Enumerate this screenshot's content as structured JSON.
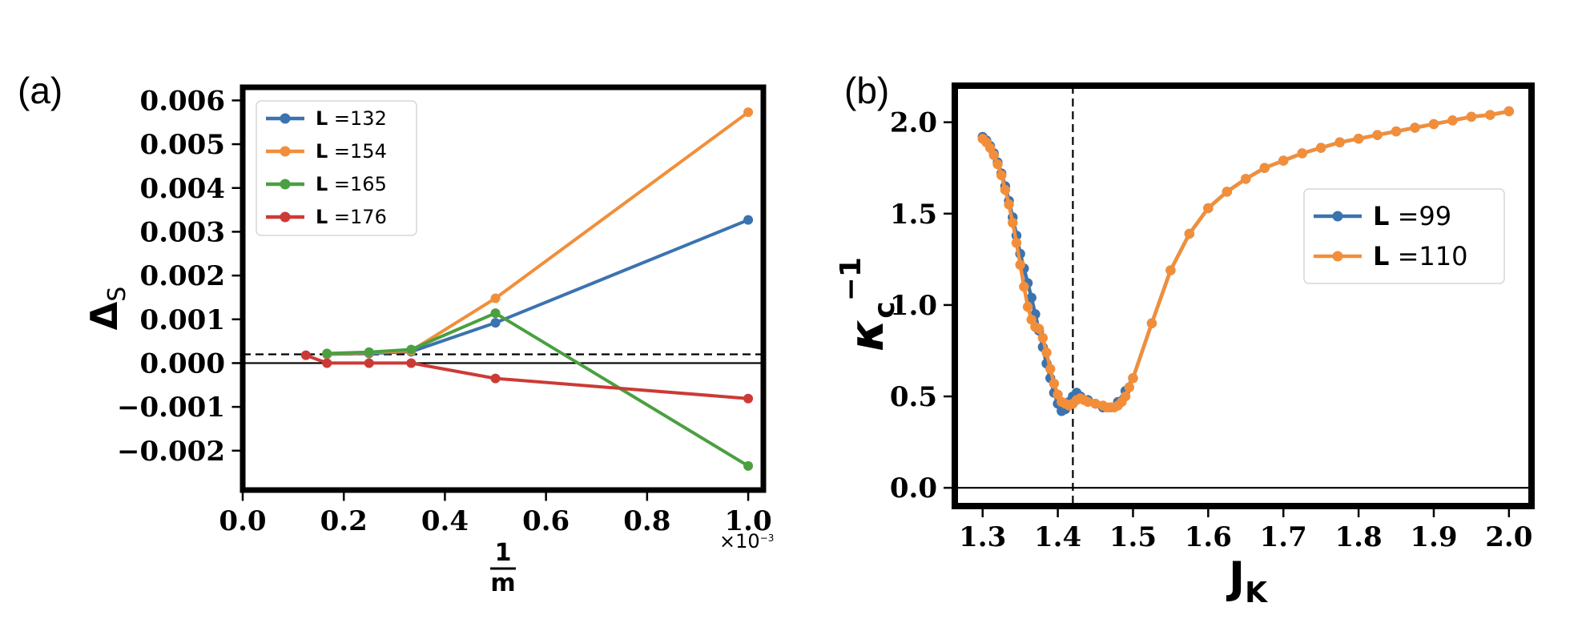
{
  "chart_data": [
    {
      "panel": "(a)",
      "type": "line",
      "xlabel_num": "1",
      "xlabel_den": "m",
      "x_multiplier": "×10",
      "x_multiplier_exp": "−3",
      "ylabel": "Δ",
      "ylabel_sub": "S",
      "xlim": [
        0.0,
        1.03
      ],
      "ylim": [
        -0.0029,
        0.0063
      ],
      "xticks": [
        0.0,
        0.2,
        0.4,
        0.6,
        0.8,
        1.0
      ],
      "xtick_labels": [
        "0.0",
        "0.2",
        "0.4",
        "0.6",
        "0.8",
        "1.0"
      ],
      "yticks": [
        -0.002,
        -0.001,
        0.0,
        0.001,
        0.002,
        0.003,
        0.004,
        0.005,
        0.006
      ],
      "ytick_labels": [
        "−0.002",
        "−0.001",
        "0.000",
        "0.001",
        "0.002",
        "0.003",
        "0.004",
        "0.005",
        "0.006"
      ],
      "hlines": [
        {
          "y": 0.0,
          "style": "solid"
        },
        {
          "y": 0.0002,
          "style": "dashed"
        }
      ],
      "legend_position": "top-left",
      "series": [
        {
          "name": "L =132",
          "label_bold": "L",
          "label_rest": " =132",
          "color": "#3b73af",
          "x": [
            0.1667,
            0.25,
            0.3333,
            0.5,
            1.0
          ],
          "y": [
            0.0002,
            0.00022,
            0.00026,
            0.00092,
            0.00327
          ]
        },
        {
          "name": "L =154",
          "label_bold": "L",
          "label_rest": " =154",
          "color": "#f28e3a",
          "x": [
            0.1667,
            0.25,
            0.3333,
            0.5,
            1.0
          ],
          "y": [
            0.00021,
            0.00024,
            0.00028,
            0.00148,
            0.00573
          ]
        },
        {
          "name": "L =165",
          "label_bold": "L",
          "label_rest": " =165",
          "color": "#4aa040",
          "x": [
            0.1667,
            0.25,
            0.3333,
            0.5,
            1.0
          ],
          "y": [
            0.00022,
            0.00025,
            0.00031,
            0.00114,
            -0.00235
          ]
        },
        {
          "name": "L =176",
          "label_bold": "L",
          "label_rest": " =176",
          "color": "#cc3a36",
          "x": [
            0.125,
            0.1667,
            0.25,
            0.3333,
            0.5,
            1.0
          ],
          "y": [
            0.00018,
            0.0,
            0.0,
            0.0,
            -0.00035,
            -0.00081
          ]
        }
      ]
    },
    {
      "panel": "(b)",
      "type": "line",
      "xlabel": "J",
      "xlabel_sub": "K",
      "ylabel": "κ",
      "ylabel_sub": "c",
      "ylabel_sup": "−1",
      "xlim": [
        1.263,
        2.03
      ],
      "ylim": [
        -0.1,
        2.2
      ],
      "xticks": [
        1.3,
        1.4,
        1.5,
        1.6,
        1.7,
        1.8,
        1.9,
        2.0
      ],
      "xtick_labels": [
        "1.3",
        "1.4",
        "1.5",
        "1.6",
        "1.7",
        "1.8",
        "1.9",
        "2.0"
      ],
      "yticks": [
        0.0,
        0.5,
        1.0,
        1.5,
        2.0
      ],
      "ytick_labels": [
        "0.0",
        "0.5",
        "1.0",
        "1.5",
        "2.0"
      ],
      "hlines": [
        {
          "y": 0.0,
          "style": "solid"
        }
      ],
      "vlines": [
        {
          "x": 1.42,
          "style": "dashed"
        }
      ],
      "legend_position": "center-right",
      "series": [
        {
          "name": "L =99",
          "label_bold": "L",
          "label_rest": " =99",
          "color": "#3b73af",
          "x": [
            1.3,
            1.305,
            1.31,
            1.315,
            1.32,
            1.325,
            1.33,
            1.335,
            1.34,
            1.345,
            1.35,
            1.355,
            1.36,
            1.365,
            1.37,
            1.375,
            1.38,
            1.385,
            1.39,
            1.395,
            1.4,
            1.405,
            1.41,
            1.415,
            1.42,
            1.425,
            1.43,
            1.44,
            1.45,
            1.46,
            1.47,
            1.48,
            1.49,
            1.5,
            1.525,
            1.55,
            1.575,
            1.6,
            1.625,
            1.65,
            1.675,
            1.7,
            1.725,
            1.75,
            1.775,
            1.8,
            1.825,
            1.85,
            1.875,
            1.9,
            1.925,
            1.95,
            1.975,
            2.0
          ],
          "y": [
            1.92,
            1.9,
            1.87,
            1.83,
            1.78,
            1.72,
            1.65,
            1.57,
            1.48,
            1.38,
            1.28,
            1.2,
            1.12,
            1.04,
            0.95,
            0.86,
            0.77,
            0.68,
            0.6,
            0.52,
            0.46,
            0.42,
            0.43,
            0.47,
            0.5,
            0.52,
            0.5,
            0.48,
            0.46,
            0.44,
            0.44,
            0.47,
            0.53,
            0.6,
            0.9,
            1.19,
            1.39,
            1.53,
            1.62,
            1.69,
            1.75,
            1.79,
            1.83,
            1.86,
            1.89,
            1.91,
            1.93,
            1.95,
            1.97,
            1.99,
            2.01,
            2.03,
            2.04,
            2.06
          ]
        },
        {
          "name": "L =110",
          "label_bold": "L",
          "label_rest": " =110",
          "color": "#f28e3a",
          "x": [
            1.3,
            1.305,
            1.31,
            1.315,
            1.32,
            1.325,
            1.33,
            1.335,
            1.34,
            1.345,
            1.35,
            1.355,
            1.36,
            1.365,
            1.37,
            1.375,
            1.38,
            1.385,
            1.39,
            1.395,
            1.4,
            1.405,
            1.41,
            1.415,
            1.42,
            1.425,
            1.43,
            1.435,
            1.44,
            1.45,
            1.46,
            1.465,
            1.47,
            1.475,
            1.48,
            1.485,
            1.49,
            1.495,
            1.5,
            1.525,
            1.55,
            1.575,
            1.6,
            1.625,
            1.65,
            1.675,
            1.7,
            1.725,
            1.75,
            1.775,
            1.8,
            1.825,
            1.85,
            1.875,
            1.9,
            1.925,
            1.95,
            1.975,
            2.0
          ],
          "y": [
            1.91,
            1.89,
            1.86,
            1.82,
            1.77,
            1.71,
            1.63,
            1.55,
            1.45,
            1.34,
            1.22,
            1.1,
            0.99,
            0.92,
            0.88,
            0.87,
            0.82,
            0.74,
            0.65,
            0.57,
            0.51,
            0.47,
            0.46,
            0.45,
            0.46,
            0.48,
            0.49,
            0.48,
            0.47,
            0.46,
            0.45,
            0.44,
            0.44,
            0.44,
            0.45,
            0.47,
            0.5,
            0.55,
            0.6,
            0.9,
            1.19,
            1.39,
            1.53,
            1.62,
            1.69,
            1.75,
            1.79,
            1.83,
            1.86,
            1.89,
            1.91,
            1.93,
            1.95,
            1.97,
            1.99,
            2.01,
            2.03,
            2.04,
            2.06
          ]
        }
      ]
    }
  ]
}
